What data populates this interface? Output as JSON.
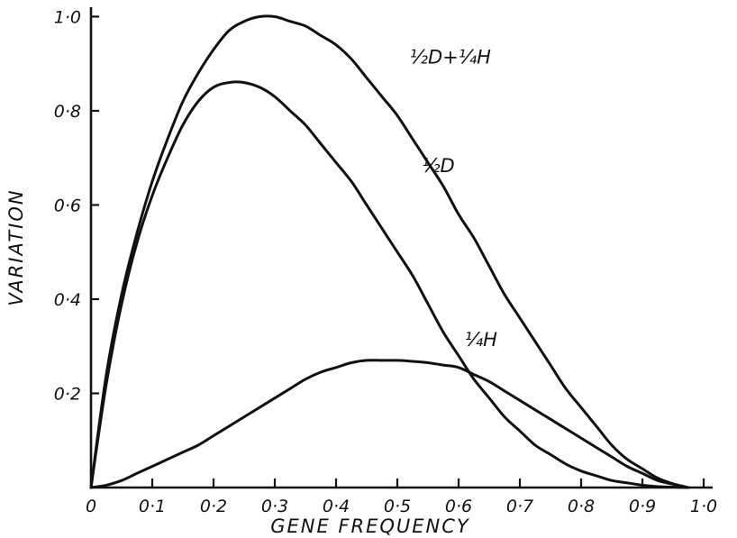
{
  "chart_data": {
    "type": "line",
    "title": "",
    "xlabel": "GENE FREQUENCY",
    "ylabel": "VARIATION",
    "xlim": [
      0,
      1.0
    ],
    "ylim": [
      0,
      1.0
    ],
    "grid": false,
    "legend": "none",
    "x_ticks": [
      {
        "value": 0,
        "label": "0"
      },
      {
        "value": 0.1,
        "label": "0·1"
      },
      {
        "value": 0.2,
        "label": "0·2"
      },
      {
        "value": 0.3,
        "label": "0·3"
      },
      {
        "value": 0.4,
        "label": "0·4"
      },
      {
        "value": 0.5,
        "label": "0·5"
      },
      {
        "value": 0.6,
        "label": "0·6"
      },
      {
        "value": 0.7,
        "label": "0·7"
      },
      {
        "value": 0.8,
        "label": "0·8"
      },
      {
        "value": 0.9,
        "label": "0·9"
      },
      {
        "value": 1.0,
        "label": "1·0"
      }
    ],
    "y_ticks": [
      {
        "value": 0.2,
        "label": "0·2"
      },
      {
        "value": 0.4,
        "label": "0·4"
      },
      {
        "value": 0.6,
        "label": "0·6"
      },
      {
        "value": 0.8,
        "label": "0·8"
      },
      {
        "value": 1.0,
        "label": "1·0"
      }
    ],
    "series": [
      {
        "name": "½D+¼H",
        "x": [
          0,
          0.025,
          0.05,
          0.075,
          0.1,
          0.125,
          0.15,
          0.175,
          0.2,
          0.225,
          0.25,
          0.275,
          0.3,
          0.325,
          0.35,
          0.375,
          0.4,
          0.425,
          0.45,
          0.475,
          0.5,
          0.525,
          0.55,
          0.575,
          0.6,
          0.625,
          0.65,
          0.675,
          0.7,
          0.725,
          0.75,
          0.775,
          0.8,
          0.825,
          0.85,
          0.875,
          0.9,
          0.925,
          0.95,
          0.975
        ],
        "values": [
          0,
          0.24,
          0.41,
          0.54,
          0.65,
          0.74,
          0.82,
          0.88,
          0.93,
          0.97,
          0.99,
          1.0,
          1.0,
          0.99,
          0.98,
          0.96,
          0.94,
          0.91,
          0.87,
          0.83,
          0.79,
          0.74,
          0.69,
          0.64,
          0.58,
          0.53,
          0.47,
          0.41,
          0.36,
          0.31,
          0.26,
          0.21,
          0.17,
          0.13,
          0.09,
          0.06,
          0.04,
          0.02,
          0.008,
          0
        ]
      },
      {
        "name": "½D",
        "x": [
          0,
          0.025,
          0.05,
          0.075,
          0.1,
          0.125,
          0.15,
          0.175,
          0.2,
          0.225,
          0.25,
          0.275,
          0.3,
          0.325,
          0.35,
          0.375,
          0.4,
          0.425,
          0.45,
          0.475,
          0.5,
          0.525,
          0.55,
          0.575,
          0.6,
          0.625,
          0.65,
          0.675,
          0.7,
          0.725,
          0.75,
          0.775,
          0.8,
          0.825,
          0.85,
          0.875,
          0.9,
          0.925,
          0.95,
          0.975
        ],
        "values": [
          0,
          0.22,
          0.39,
          0.52,
          0.62,
          0.7,
          0.77,
          0.82,
          0.85,
          0.86,
          0.86,
          0.85,
          0.83,
          0.8,
          0.77,
          0.73,
          0.69,
          0.65,
          0.6,
          0.55,
          0.5,
          0.45,
          0.39,
          0.33,
          0.28,
          0.23,
          0.19,
          0.15,
          0.12,
          0.09,
          0.07,
          0.05,
          0.035,
          0.025,
          0.015,
          0.01,
          0.005,
          0.002,
          0.001,
          0
        ]
      },
      {
        "name": "¼H",
        "x": [
          0,
          0.025,
          0.05,
          0.075,
          0.1,
          0.125,
          0.15,
          0.175,
          0.2,
          0.225,
          0.25,
          0.275,
          0.3,
          0.325,
          0.35,
          0.375,
          0.4,
          0.425,
          0.45,
          0.475,
          0.5,
          0.525,
          0.55,
          0.575,
          0.6,
          0.625,
          0.65,
          0.675,
          0.7,
          0.725,
          0.75,
          0.775,
          0.8,
          0.825,
          0.85,
          0.875,
          0.9,
          0.925,
          0.95,
          0.975
        ],
        "values": [
          0,
          0.005,
          0.015,
          0.03,
          0.045,
          0.06,
          0.075,
          0.09,
          0.11,
          0.13,
          0.15,
          0.17,
          0.19,
          0.21,
          0.23,
          0.245,
          0.255,
          0.265,
          0.27,
          0.27,
          0.27,
          0.268,
          0.265,
          0.26,
          0.255,
          0.24,
          0.225,
          0.205,
          0.185,
          0.165,
          0.145,
          0.125,
          0.105,
          0.085,
          0.065,
          0.045,
          0.03,
          0.015,
          0.007,
          0
        ]
      }
    ],
    "annotations": [
      {
        "text": "½D+¼H",
        "series": 0,
        "x": 0.52,
        "y": 0.9
      },
      {
        "text": "½D",
        "series": 1,
        "x": 0.54,
        "y": 0.67
      },
      {
        "text": "¼H",
        "series": 2,
        "x": 0.61,
        "y": 0.3
      }
    ]
  }
}
